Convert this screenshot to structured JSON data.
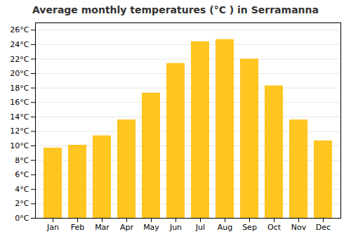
{
  "chart_data": {
    "type": "bar",
    "title": "Average monthly temperatures (°C ) in Serramanna",
    "categories": [
      "Jan",
      "Feb",
      "Mar",
      "Apr",
      "May",
      "Jun",
      "Jul",
      "Aug",
      "Sep",
      "Oct",
      "Nov",
      "Dec"
    ],
    "values": [
      9.7,
      10.1,
      11.4,
      13.6,
      17.3,
      21.4,
      24.4,
      24.7,
      22.0,
      18.3,
      13.6,
      10.7
    ],
    "color": "#FFC520",
    "ylim": [
      0,
      27
    ],
    "yticks": [
      {
        "value": 0,
        "label": "0°C"
      },
      {
        "value": 2,
        "label": "2°C"
      },
      {
        "value": 4,
        "label": "4°C"
      },
      {
        "value": 6,
        "label": "6°C"
      },
      {
        "value": 8,
        "label": "8°C"
      },
      {
        "value": 10,
        "label": "10°C"
      },
      {
        "value": 12,
        "label": "12°C"
      },
      {
        "value": 14,
        "label": "14°C"
      },
      {
        "value": 16,
        "label": "16°C"
      },
      {
        "value": 18,
        "label": "18°C"
      },
      {
        "value": 20,
        "label": "20°C"
      },
      {
        "value": 22,
        "label": "22°C"
      },
      {
        "value": 24,
        "label": "24°C"
      },
      {
        "value": 26,
        "label": "26°C"
      }
    ],
    "grid": true
  }
}
